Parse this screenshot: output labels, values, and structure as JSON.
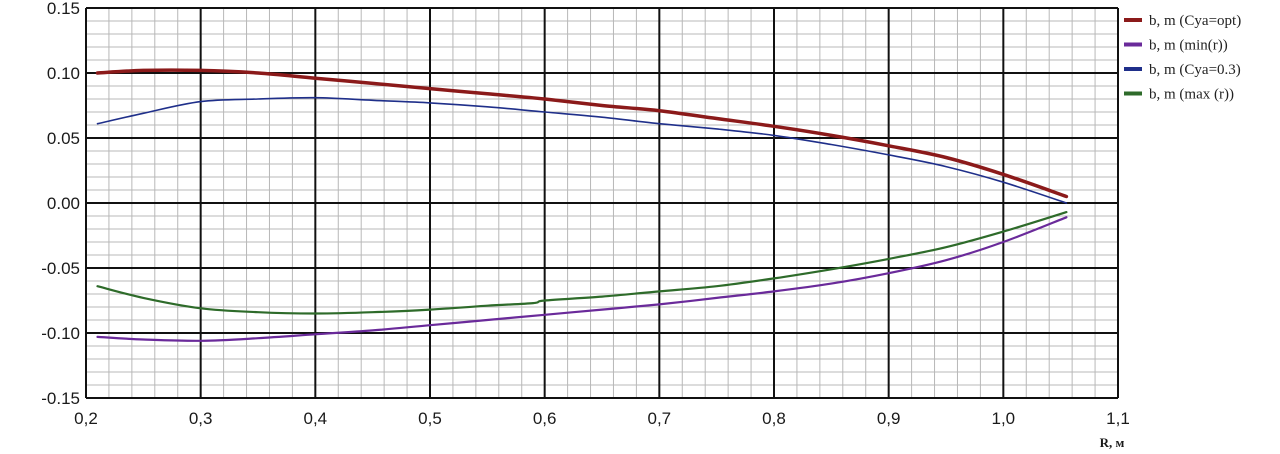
{
  "chart_data": {
    "type": "line",
    "title": "",
    "xlabel": "R, м",
    "ylabel": "",
    "xlim": [
      0.2,
      1.1
    ],
    "ylim": [
      -0.15,
      0.15
    ],
    "x_ticks": [
      "0,2",
      "0,3",
      "0,4",
      "0,5",
      "0,6",
      "0,7",
      "0,8",
      "0,9",
      "1,0",
      "1,1"
    ],
    "x_tick_values": [
      0.2,
      0.3,
      0.4,
      0.5,
      0.6,
      0.7,
      0.8,
      0.9,
      1.0,
      1.1
    ],
    "y_ticks": [
      "0.15",
      "0.10",
      "0.05",
      "0.00",
      "-0.05",
      "-0.10",
      "-0.15"
    ],
    "y_tick_values": [
      0.15,
      0.1,
      0.05,
      0.0,
      -0.05,
      -0.1,
      -0.15
    ],
    "grid": true,
    "minor_grid": true,
    "legend_position": "right",
    "series": [
      {
        "name": "b, m (Cya=opt)",
        "color": "#8b1a1a",
        "x": [
          0.21,
          0.25,
          0.3,
          0.35,
          0.4,
          0.45,
          0.5,
          0.55,
          0.6,
          0.65,
          0.7,
          0.75,
          0.8,
          0.85,
          0.9,
          0.95,
          1.0,
          1.055
        ],
        "y": [
          0.1,
          0.102,
          0.102,
          0.1,
          0.096,
          0.092,
          0.088,
          0.084,
          0.08,
          0.075,
          0.071,
          0.065,
          0.059,
          0.052,
          0.044,
          0.035,
          0.022,
          0.005
        ]
      },
      {
        "name": "b, m (min(r))",
        "color": "#6a2a9a",
        "x": [
          0.21,
          0.25,
          0.3,
          0.35,
          0.4,
          0.45,
          0.5,
          0.55,
          0.6,
          0.65,
          0.7,
          0.75,
          0.8,
          0.85,
          0.9,
          0.95,
          1.0,
          1.055
        ],
        "y": [
          -0.103,
          -0.105,
          -0.106,
          -0.104,
          -0.101,
          -0.098,
          -0.094,
          -0.09,
          -0.086,
          -0.082,
          -0.078,
          -0.073,
          -0.068,
          -0.062,
          -0.054,
          -0.044,
          -0.03,
          -0.011
        ]
      },
      {
        "name": "b, m (Cya=0.3)",
        "color": "#1f2f8a",
        "x": [
          0.21,
          0.25,
          0.3,
          0.35,
          0.4,
          0.45,
          0.5,
          0.55,
          0.6,
          0.65,
          0.7,
          0.75,
          0.8,
          0.85,
          0.9,
          0.95,
          1.0,
          1.055
        ],
        "y": [
          0.061,
          0.069,
          0.078,
          0.08,
          0.081,
          0.079,
          0.077,
          0.074,
          0.07,
          0.066,
          0.061,
          0.057,
          0.052,
          0.045,
          0.037,
          0.028,
          0.016,
          0.0
        ]
      },
      {
        "name": "b, m (max (r))",
        "color": "#2e6b2a",
        "x": [
          0.21,
          0.25,
          0.3,
          0.35,
          0.4,
          0.45,
          0.5,
          0.55,
          0.59,
          0.6,
          0.65,
          0.7,
          0.75,
          0.8,
          0.85,
          0.9,
          0.95,
          1.0,
          1.055
        ],
        "y": [
          -0.064,
          -0.073,
          -0.081,
          -0.084,
          -0.085,
          -0.084,
          -0.082,
          -0.079,
          -0.077,
          -0.075,
          -0.072,
          -0.068,
          -0.064,
          -0.058,
          -0.051,
          -0.043,
          -0.034,
          -0.022,
          -0.007
        ]
      }
    ]
  }
}
